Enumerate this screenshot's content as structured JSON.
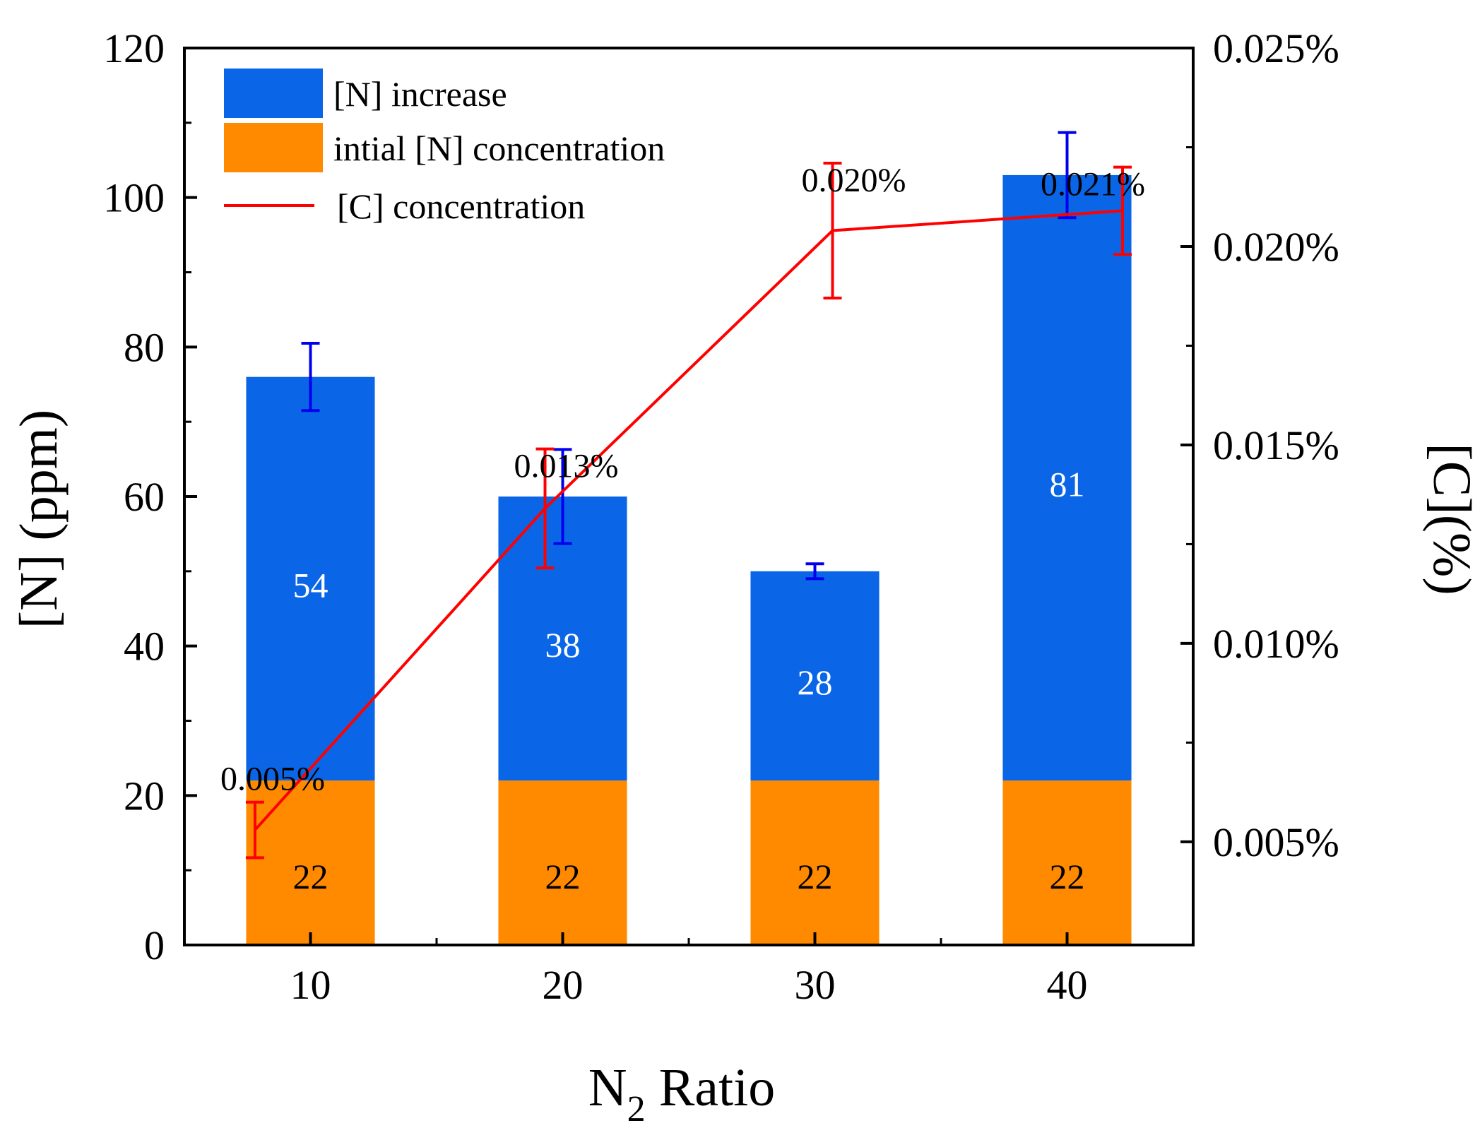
{
  "chart_data": {
    "type": "bar",
    "stacked": true,
    "categories": [
      "10",
      "20",
      "30",
      "40"
    ],
    "series": [
      {
        "name": "intial [N] concentration",
        "kind": "bar",
        "axis": "left",
        "color": "#ff8a00",
        "label_color": "#000000",
        "values": [
          22,
          22,
          22,
          22
        ],
        "labels": [
          "22",
          "22",
          "22",
          "22"
        ]
      },
      {
        "name": "[N] increase",
        "kind": "bar",
        "axis": "left",
        "color": "#0a66e6",
        "label_color": "#ffffff",
        "values": [
          54,
          38,
          28,
          81
        ],
        "labels": [
          "54",
          "38",
          "28",
          "81"
        ],
        "error": [
          4.5,
          6.3,
          1.0,
          5.7
        ],
        "error_color": "#0000ee"
      },
      {
        "name": "[C] concentration",
        "kind": "line",
        "axis": "right",
        "color": "#ff0000",
        "x": [
          7.8,
          19.3,
          30.7,
          42.2
        ],
        "values": [
          0.0053,
          0.0134,
          0.0204,
          0.0209
        ],
        "error": [
          0.0007,
          0.0015,
          0.0017,
          0.0011
        ],
        "labels": [
          "0.005%",
          "0.013%",
          "0.020%",
          "0.021%"
        ]
      }
    ],
    "xlabel": "N",
    "xlabel_subscript": "2",
    "xlabel_suffix": " Ratio",
    "ylabel": "[N] (ppm)",
    "y2label": "[C](%)",
    "xlim": [
      5,
      45
    ],
    "ylim": [
      0,
      120
    ],
    "y2lim": [
      0.0024,
      0.025
    ],
    "xticks": [
      10,
      20,
      30,
      40
    ],
    "yticks": [
      0,
      20,
      40,
      60,
      80,
      100,
      120
    ],
    "y2ticks": [
      0.005,
      0.01,
      0.015,
      0.02,
      0.025
    ],
    "y2tick_labels": [
      "0.005%",
      "0.010%",
      "0.015%",
      "0.020%",
      "0.025%"
    ],
    "grid": false,
    "legend": {
      "placement": "top-left",
      "entries": [
        "[N] increase",
        "intial [N] concentration",
        "[C] concentration"
      ]
    }
  }
}
